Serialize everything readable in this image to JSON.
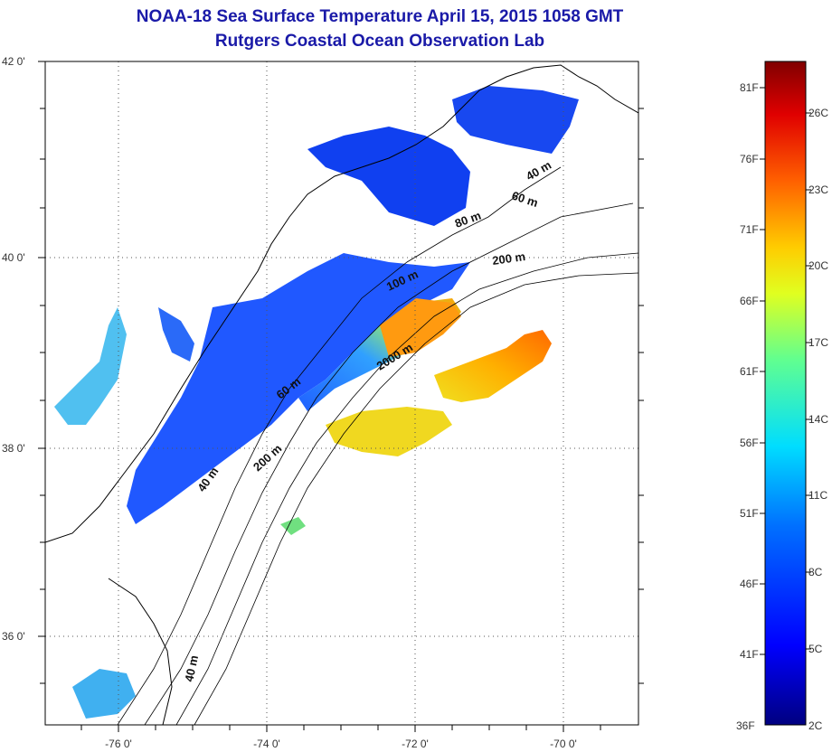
{
  "title": {
    "line1": "NOAA-18 Sea Surface Temperature April 15, 2015 1058 GMT",
    "line2": "Rutgers Coastal Ocean Observation Lab"
  },
  "axes": {
    "lat_labels": [
      "42 0'",
      "40 0'",
      "38 0'",
      "36 0'"
    ],
    "lon_labels": [
      "-76 0'",
      "-74 0'",
      "-72 0'",
      "-70 0'"
    ],
    "lat_range": [
      35,
      42
    ],
    "lon_range": [
      -77,
      -69
    ],
    "grid": "dotted"
  },
  "contours": {
    "c40a": "40 m",
    "c60a": "60 m",
    "c80": "80 m",
    "c200a": "200 m",
    "c100": "100 m",
    "c2000": "2000 m",
    "c60b": "60 m",
    "c200b": "200 m",
    "c40b": "40 m",
    "c40c": "40 m"
  },
  "colorbar": {
    "fahrenheit": [
      "81F",
      "76F",
      "71F",
      "66F",
      "61F",
      "56F",
      "51F",
      "46F",
      "41F",
      "36F"
    ],
    "celsius": [
      "26C",
      "23C",
      "20C",
      "17C",
      "14C",
      "11C",
      "8C",
      "5C",
      "2C"
    ],
    "colors": [
      "#800000",
      "#ff0000",
      "#ff8000",
      "#ffff00",
      "#80ff80",
      "#00ffff",
      "#0080ff",
      "#0000ff",
      "#000090"
    ]
  }
}
